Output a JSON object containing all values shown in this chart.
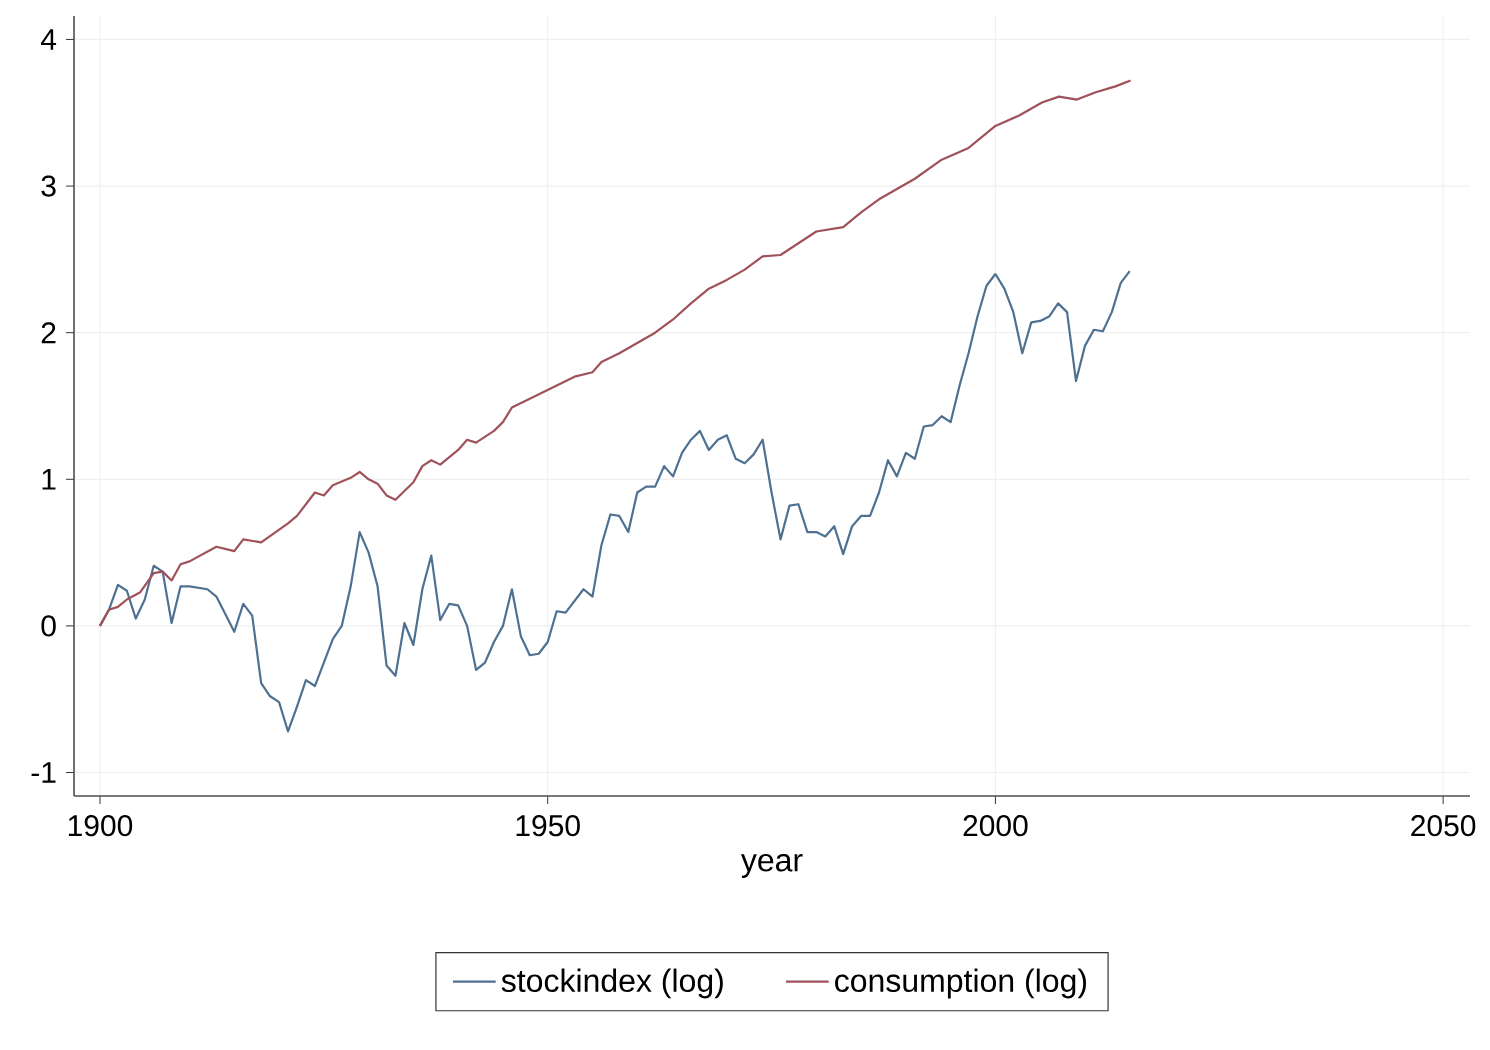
{
  "chart_data": {
    "type": "line",
    "xlabel": "year",
    "xlim": [
      1897.1,
      2053
    ],
    "xticks": [
      1900,
      1950,
      2000,
      2050
    ],
    "ylim": [
      -1.16,
      4.16
    ],
    "yticks": [
      -1,
      0,
      1,
      2,
      3,
      4
    ],
    "grid": true,
    "legend": "bottom",
    "series": [
      {
        "name": "stockindex (log)",
        "color": "#4f7191",
        "x": [
          1900,
          1901,
          1902,
          1903,
          1904,
          1905,
          1906,
          1907,
          1908,
          1909,
          1910,
          1912,
          1913,
          1915,
          1916,
          1917,
          1918,
          1919,
          1920,
          1921,
          1922,
          1923,
          1924,
          1925,
          1926,
          1927,
          1928,
          1929,
          1930,
          1931,
          1932,
          1933,
          1934,
          1935,
          1936,
          1937,
          1938,
          1939,
          1940,
          1941,
          1942,
          1943,
          1944,
          1945,
          1946,
          1947,
          1948,
          1949,
          1950,
          1951,
          1952,
          1954,
          1955,
          1956,
          1957,
          1958,
          1959,
          1960,
          1961,
          1962,
          1963,
          1964,
          1965,
          1966,
          1967,
          1968,
          1969,
          1970,
          1971,
          1972,
          1973,
          1974,
          1975,
          1976,
          1977,
          1978,
          1979,
          1980,
          1981,
          1982,
          1983,
          1984,
          1985,
          1986,
          1987,
          1988,
          1989,
          1990,
          1991,
          1992,
          1993,
          1994,
          1995,
          1996,
          1997,
          1998,
          1999,
          2000,
          2001,
          2002,
          2003,
          2004,
          2005,
          2006,
          2007,
          2008,
          2009,
          2010,
          2011,
          2012,
          2013,
          2014,
          2015
        ],
        "values": [
          0,
          0.11,
          0.28,
          0.24,
          0.05,
          0.18,
          0.41,
          0.37,
          0.02,
          0.27,
          0.27,
          0.25,
          0.2,
          -0.04,
          0.15,
          0.07,
          -0.39,
          -0.48,
          -0.52,
          -0.72,
          -0.55,
          -0.37,
          -0.41,
          -0.25,
          -0.09,
          0,
          0.27,
          0.64,
          0.5,
          0.27,
          -0.27,
          -0.34,
          0.02,
          -0.13,
          0.25,
          0.48,
          0.04,
          0.15,
          0.14,
          0,
          -0.3,
          -0.25,
          -0.11,
          0,
          0.25,
          -0.07,
          -0.2,
          -0.19,
          -0.11,
          0.1,
          0.09,
          0.25,
          0.2,
          0.55,
          0.76,
          0.75,
          0.64,
          0.91,
          0.95,
          0.95,
          1.09,
          1.02,
          1.18,
          1.27,
          1.33,
          1.2,
          1.27,
          1.3,
          1.14,
          1.11,
          1.17,
          1.27,
          0.91,
          0.59,
          0.82,
          0.83,
          0.64,
          0.64,
          0.61,
          0.68,
          0.49,
          0.68,
          0.75,
          0.75,
          0.91,
          1.13,
          1.02,
          1.18,
          1.14,
          1.36,
          1.37,
          1.43,
          1.39,
          1.64,
          1.86,
          2.11,
          2.32,
          2.4,
          2.3,
          2.14,
          1.86,
          2.07,
          2.08,
          2.11,
          2.2,
          2.14,
          1.67,
          1.91,
          2.02,
          2.01,
          2.14,
          2.34,
          2.42
        ]
      },
      {
        "name": "consumption (log)",
        "color": "#a0525a",
        "x": [
          1900,
          1901,
          1902,
          1903,
          1904.5,
          1906,
          1907,
          1908,
          1909,
          1910,
          1913,
          1915,
          1916,
          1918,
          1921,
          1922,
          1924,
          1925,
          1926,
          1928,
          1929,
          1930,
          1931,
          1932,
          1933,
          1935,
          1936,
          1937,
          1938,
          1940,
          1941,
          1942,
          1944,
          1945,
          1946,
          1948,
          1950,
          1951,
          1953,
          1955,
          1956,
          1958,
          1960,
          1962,
          1964,
          1966,
          1968,
          1970,
          1972,
          1974,
          1976,
          1978,
          1980,
          1983,
          1985,
          1987,
          1991,
          1994,
          1997,
          2000,
          2002.6,
          2005.2,
          2007.1,
          2009.1,
          2011.2,
          2013.4,
          2015.1
        ],
        "values": [
          0,
          0.11,
          0.13,
          0.18,
          0.23,
          0.36,
          0.37,
          0.31,
          0.42,
          0.44,
          0.54,
          0.51,
          0.59,
          0.57,
          0.7,
          0.75,
          0.91,
          0.89,
          0.96,
          1.01,
          1.05,
          1.0,
          0.97,
          0.89,
          0.86,
          0.98,
          1.09,
          1.13,
          1.1,
          1.2,
          1.27,
          1.25,
          1.33,
          1.39,
          1.49,
          1.55,
          1.61,
          1.64,
          1.7,
          1.73,
          1.8,
          1.86,
          1.93,
          2.0,
          2.09,
          2.2,
          2.3,
          2.36,
          2.43,
          2.52,
          2.53,
          2.61,
          2.69,
          2.72,
          2.82,
          2.91,
          3.05,
          3.18,
          3.26,
          3.41,
          3.48,
          3.57,
          3.61,
          3.59,
          3.64,
          3.68,
          3.72
        ]
      }
    ]
  }
}
